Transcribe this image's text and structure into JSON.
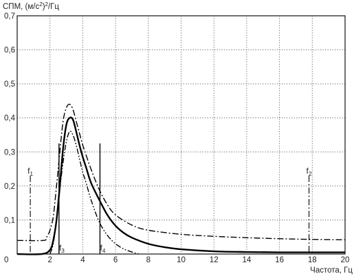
{
  "chart_data": {
    "type": "line",
    "ylabel_prefix": "СПМ, (м/с",
    "ylabel_sup": "2",
    "ylabel_suffix": ")",
    "ylabel_sup2": "2",
    "ylabel_tail": "/Гц",
    "xlabel": "Частота, Гц",
    "xlim": [
      0,
      20
    ],
    "ylim": [
      0,
      0.7
    ],
    "x_ticks": [
      {
        "value": 0,
        "label": "0"
      },
      {
        "value": 2,
        "label": "2"
      },
      {
        "value": 4,
        "label": "4"
      },
      {
        "value": 6,
        "label": "6"
      },
      {
        "value": 8,
        "label": "8"
      },
      {
        "value": 10,
        "label": "10"
      },
      {
        "value": 12,
        "label": "12"
      },
      {
        "value": 14,
        "label": "14"
      },
      {
        "value": 16,
        "label": "16"
      },
      {
        "value": 18,
        "label": "18"
      },
      {
        "value": 20,
        "label": "20"
      }
    ],
    "y_ticks": [
      {
        "value": 0.1,
        "label": "0,1"
      },
      {
        "value": 0.2,
        "label": "0,2"
      },
      {
        "value": 0.3,
        "label": "0,3"
      },
      {
        "value": 0.4,
        "label": "0,4"
      },
      {
        "value": 0.5,
        "label": "0,5"
      },
      {
        "value": 0.6,
        "label": "0,6"
      },
      {
        "value": 0.7,
        "label": "0,7"
      }
    ],
    "grid": true,
    "series": [
      {
        "style": "solid",
        "x": [
          0,
          1.5,
          2.0,
          2.2,
          2.4,
          2.6,
          2.8,
          3.0,
          3.2,
          3.4,
          3.6,
          3.8,
          4.0,
          4.2,
          4.5,
          5.0,
          5.5,
          6.0,
          6.5,
          7.0,
          8.0,
          9.0,
          10.0,
          12.0,
          14.0,
          16.0,
          18.0,
          20.0
        ],
        "y": [
          0,
          0,
          0.012,
          0.04,
          0.1,
          0.2,
          0.31,
          0.38,
          0.4,
          0.395,
          0.36,
          0.32,
          0.285,
          0.255,
          0.21,
          0.16,
          0.115,
          0.083,
          0.062,
          0.048,
          0.03,
          0.02,
          0.014,
          0.008,
          0.006,
          0.005,
          0.005,
          0.005
        ]
      },
      {
        "style": "dash-dot",
        "x": [
          0,
          1.6,
          1.8,
          2.0,
          2.2,
          2.4,
          2.6,
          2.8,
          3.0,
          3.2,
          3.4,
          3.6,
          3.8,
          4.0,
          4.5,
          5.0,
          5.5,
          6.0,
          7.0,
          8.0,
          10.0,
          12.0,
          14.0,
          16.0,
          18.0,
          20.0
        ],
        "y": [
          0.04,
          0.04,
          0.05,
          0.07,
          0.11,
          0.2,
          0.3,
          0.39,
          0.43,
          0.44,
          0.425,
          0.39,
          0.355,
          0.32,
          0.25,
          0.19,
          0.145,
          0.115,
          0.085,
          0.07,
          0.058,
          0.052,
          0.048,
          0.045,
          0.043,
          0.042
        ]
      },
      {
        "style": "dash-dot-dot",
        "x": [
          2.0,
          2.2,
          2.4,
          2.6,
          2.8,
          3.0,
          3.2,
          3.4,
          3.6,
          3.8,
          4.0,
          4.2,
          4.5,
          5.0,
          5.5,
          6.0,
          6.5,
          7.0,
          7.4
        ],
        "y": [
          0,
          0.03,
          0.1,
          0.19,
          0.27,
          0.33,
          0.36,
          0.35,
          0.32,
          0.28,
          0.24,
          0.21,
          0.16,
          0.095,
          0.055,
          0.03,
          0.015,
          0.006,
          0
        ]
      }
    ],
    "annotations": [
      {
        "main": "f",
        "sub": "1",
        "x": 0.8,
        "y_top": 0.23,
        "line_style": "dash-dot",
        "label_side": "top"
      },
      {
        "main": "f",
        "sub": "2",
        "x": 17.8,
        "y_top": 0.23,
        "line_style": "dash-dot",
        "label_side": "top"
      },
      {
        "main": "f",
        "sub": "3",
        "x": 2.55,
        "y_top": 0.325,
        "line_style": "solid",
        "label_side": "bottom"
      },
      {
        "main": "f",
        "sub": "4",
        "x": 5.05,
        "y_top": 0.325,
        "line_style": "solid",
        "label_side": "bottom"
      }
    ]
  }
}
